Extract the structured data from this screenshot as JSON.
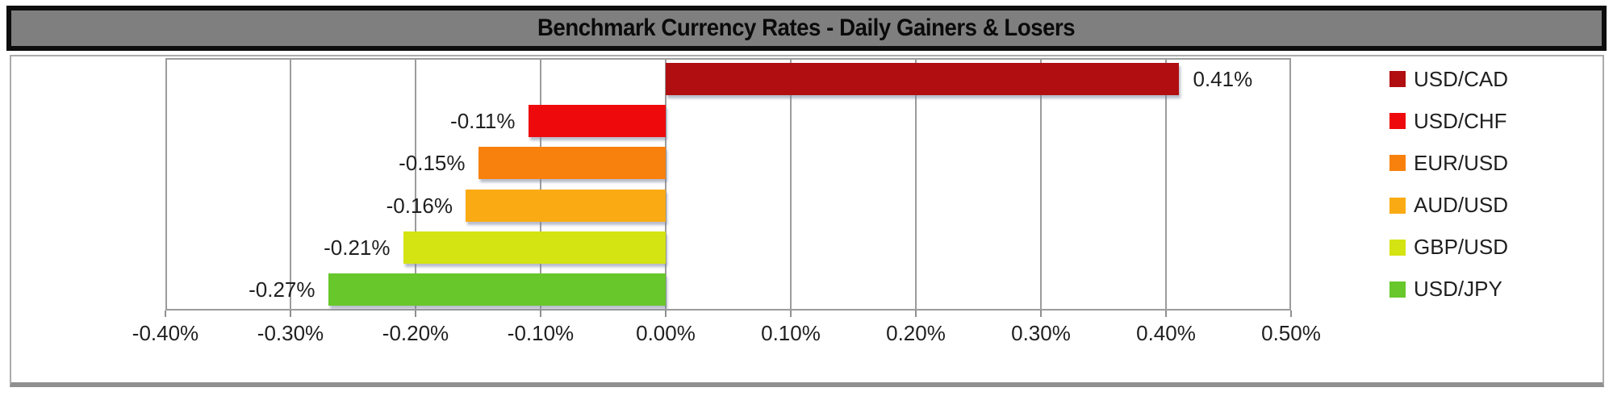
{
  "title": {
    "text": "Benchmark Currency Rates - Daily Gainers & Losers"
  },
  "chart_data": {
    "type": "bar",
    "orientation": "horizontal",
    "title": "Benchmark Currency Rates - Daily Gainers & Losers",
    "categories": [
      "USD/CAD",
      "USD/CHF",
      "EUR/USD",
      "AUD/USD",
      "GBP/USD",
      "USD/JPY"
    ],
    "values": [
      0.41,
      -0.11,
      -0.15,
      -0.16,
      -0.21,
      -0.27
    ],
    "value_labels": [
      "0.41%",
      "-0.11%",
      "-0.15%",
      "-0.16%",
      "-0.21%",
      "-0.27%"
    ],
    "bar_colors": [
      "#b10e11",
      "#ee0a0c",
      "#f8810d",
      "#faab13",
      "#d4e312",
      "#68c72b"
    ],
    "x_ticks": [
      "-0.40%",
      "-0.30%",
      "-0.20%",
      "-0.10%",
      "0.00%",
      "0.10%",
      "0.20%",
      "0.30%",
      "0.40%",
      "0.50%"
    ],
    "xlim": [
      -0.4,
      0.5
    ],
    "xlabel": "",
    "ylabel": "",
    "grid": true,
    "legend_position": "right",
    "colors": {
      "title_background": "#7f7f7f",
      "title_border": "#0d0d0d",
      "frame_border": "#ababab",
      "gridline": "#9c9c9c",
      "text": "#1f1f1f"
    }
  }
}
